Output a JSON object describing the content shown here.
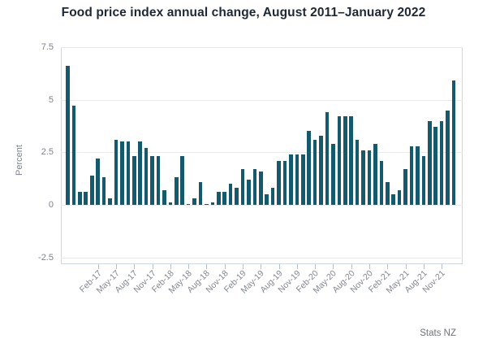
{
  "title": "Food price index annual change, August 2011–January 2022",
  "source": "Stats NZ",
  "colors": {
    "bar": "#15596d",
    "grid": "#e8eaed",
    "frame": "#cfd6dd",
    "axis_text": "#7d838c",
    "title_text": "#1e2834",
    "source_text": "#6d7378"
  },
  "chart_data": {
    "type": "bar",
    "title": "Food price index annual change, August 2011–January 2022",
    "xlabel": "",
    "ylabel": "Percent",
    "ylim": [
      -2.5,
      7.5
    ],
    "yticks": [
      7.5,
      5,
      2.5,
      0,
      -2.5
    ],
    "grid": true,
    "legend_position": "none",
    "x_tick_labels": [
      "Feb-17",
      "May-17",
      "Aug-17",
      "Nov-17",
      "Feb-18",
      "May-18",
      "Aug-18",
      "Nov-18",
      "Feb-19",
      "May-19",
      "Aug-19",
      "Nov-19",
      "Feb-20",
      "May-20",
      "Aug-20",
      "Nov-20",
      "Feb-21",
      "May-21",
      "Aug-21",
      "Nov-21"
    ],
    "categories": [
      "Sep-16",
      "Oct-16",
      "Nov-16",
      "Dec-16",
      "Jan-17",
      "Feb-17",
      "Mar-17",
      "Apr-17",
      "May-17",
      "Jun-17",
      "Jul-17",
      "Aug-17",
      "Sep-17",
      "Oct-17",
      "Nov-17",
      "Dec-17",
      "Jan-18",
      "Feb-18",
      "Mar-18",
      "Apr-18",
      "May-18",
      "Jun-18",
      "Jul-18",
      "Aug-18",
      "Sep-18",
      "Oct-18",
      "Nov-18",
      "Dec-18",
      "Jan-19",
      "Feb-19",
      "Mar-19",
      "Apr-19",
      "May-19",
      "Jun-19",
      "Jul-19",
      "Aug-19",
      "Sep-19",
      "Oct-19",
      "Nov-19",
      "Dec-19",
      "Jan-20",
      "Feb-20",
      "Mar-20",
      "Apr-20",
      "May-20",
      "Jun-20",
      "Jul-20",
      "Aug-20",
      "Sep-20",
      "Oct-20",
      "Nov-20",
      "Dec-20",
      "Jan-21",
      "Feb-21",
      "Mar-21",
      "Apr-21",
      "May-21",
      "Jun-21",
      "Jul-21",
      "Aug-21",
      "Sep-21",
      "Oct-21",
      "Nov-21",
      "Dec-21",
      "Jan-22"
    ],
    "values": [
      6.6,
      4.7,
      0.6,
      0.6,
      1.4,
      2.2,
      1.3,
      0.3,
      3.1,
      3.0,
      3.0,
      2.3,
      3.0,
      2.7,
      2.3,
      2.3,
      0.7,
      0.1,
      1.3,
      2.3,
      0.05,
      0.3,
      1.1,
      0.05,
      0.1,
      0.6,
      0.6,
      1.0,
      0.8,
      1.7,
      1.2,
      1.7,
      1.6,
      0.5,
      0.8,
      2.1,
      2.1,
      2.4,
      2.4,
      2.4,
      3.5,
      3.1,
      3.3,
      4.4,
      2.9,
      4.2,
      4.2,
      4.2,
      3.1,
      2.6,
      2.6,
      2.9,
      2.1,
      1.1,
      0.5,
      0.7,
      1.7,
      2.8,
      2.8,
      2.3,
      4.0,
      3.7,
      4.0,
      4.5,
      5.9
    ]
  }
}
